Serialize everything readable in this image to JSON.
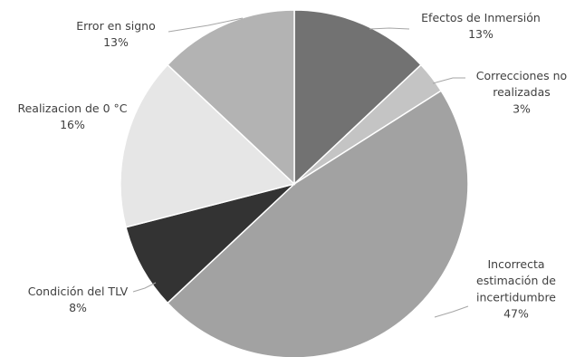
{
  "chart_data": {
    "type": "pie",
    "title": "",
    "slices": [
      {
        "label": "Efectos de Inmersión",
        "label_lines": [
          "Efectos de Inmersión"
        ],
        "value": 13,
        "value_label": "13%",
        "color": "#727272"
      },
      {
        "label": "Correcciones no realizadas",
        "label_lines": [
          "Correcciones no",
          "realizadas"
        ],
        "value": 3,
        "value_label": "3%",
        "color": "#c4c4c4"
      },
      {
        "label": "Incorrecta estimación de incertidumbre",
        "label_lines": [
          "Incorrecta",
          "estimación de",
          "incertidumbre"
        ],
        "value": 47,
        "value_label": "47%",
        "color": "#a2a2a2"
      },
      {
        "label": "Condición del TLV",
        "label_lines": [
          "Condición del TLV"
        ],
        "value": 8,
        "value_label": "8%",
        "color": "#333333"
      },
      {
        "label": "Realizacion de 0 °C",
        "label_lines": [
          "Realizacion de 0 °C"
        ],
        "value": 16,
        "value_label": "16%",
        "color": "#e6e6e6"
      },
      {
        "label": "Error en signo",
        "label_lines": [
          "Error en signo"
        ],
        "value": 13,
        "value_label": "13%",
        "color": "#b3b3b3"
      }
    ],
    "start_position": "top",
    "direction": "clockwise",
    "legend": "none"
  }
}
